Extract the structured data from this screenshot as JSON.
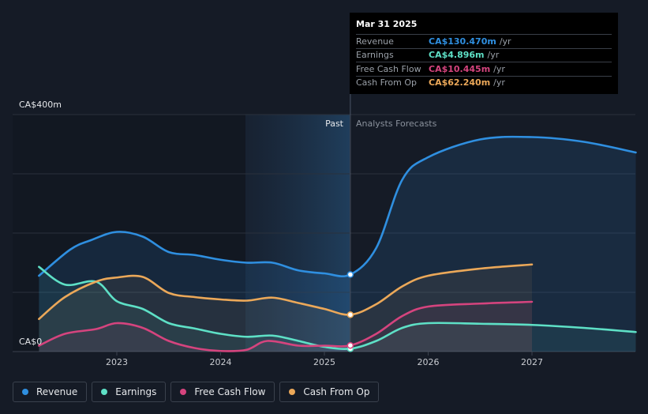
{
  "chart_data": {
    "type": "area",
    "y_unit": "CA$m",
    "ylim": [
      0,
      400
    ],
    "y_tick_labels": [
      "CA$400m",
      "CA$0"
    ],
    "x_tick_labels": [
      "2023",
      "2024",
      "2025",
      "2026",
      "2027"
    ],
    "past_label": "Past",
    "forecast_label": "Analysts Forecasts",
    "series": [
      {
        "name": "Revenue",
        "color": "#2f8fe0",
        "points": [
          [
            2022.25,
            128
          ],
          [
            2022.55,
            172
          ],
          [
            2022.75,
            188
          ],
          [
            2023.0,
            202
          ],
          [
            2023.25,
            194
          ],
          [
            2023.5,
            168
          ],
          [
            2023.75,
            163
          ],
          [
            2024.0,
            155
          ],
          [
            2024.25,
            150
          ],
          [
            2024.5,
            150
          ],
          [
            2024.75,
            137
          ],
          [
            2025.0,
            132
          ],
          [
            2025.25,
            130
          ],
          [
            2025.5,
            175
          ],
          [
            2025.75,
            290
          ],
          [
            2026.0,
            328
          ],
          [
            2026.5,
            358
          ],
          [
            2027.0,
            362
          ],
          [
            2027.5,
            354
          ],
          [
            2028.0,
            336
          ]
        ]
      },
      {
        "name": "Earnings",
        "color": "#5ee0c6",
        "points": [
          [
            2022.25,
            143
          ],
          [
            2022.5,
            113
          ],
          [
            2022.8,
            118
          ],
          [
            2023.0,
            85
          ],
          [
            2023.25,
            72
          ],
          [
            2023.5,
            48
          ],
          [
            2023.75,
            39
          ],
          [
            2024.0,
            30
          ],
          [
            2024.25,
            25
          ],
          [
            2024.5,
            27
          ],
          [
            2024.75,
            18
          ],
          [
            2025.0,
            8
          ],
          [
            2025.25,
            4.9
          ],
          [
            2025.5,
            18
          ],
          [
            2025.75,
            40
          ],
          [
            2026.0,
            48
          ],
          [
            2026.5,
            47
          ],
          [
            2027.0,
            45
          ],
          [
            2027.5,
            40
          ],
          [
            2028.0,
            33
          ]
        ]
      },
      {
        "name": "Free Cash Flow",
        "color": "#d5447e",
        "points": [
          [
            2022.25,
            10
          ],
          [
            2022.5,
            30
          ],
          [
            2022.8,
            38
          ],
          [
            2023.0,
            48
          ],
          [
            2023.25,
            40
          ],
          [
            2023.5,
            18
          ],
          [
            2023.75,
            6
          ],
          [
            2024.0,
            1
          ],
          [
            2024.25,
            3
          ],
          [
            2024.45,
            18
          ],
          [
            2024.75,
            10
          ],
          [
            2025.0,
            10
          ],
          [
            2025.25,
            10.4
          ],
          [
            2025.5,
            30
          ],
          [
            2025.75,
            60
          ],
          [
            2026.0,
            76
          ],
          [
            2026.5,
            81
          ],
          [
            2027.0,
            84
          ]
        ]
      },
      {
        "name": "Cash From Op",
        "color": "#eba859",
        "points": [
          [
            2022.25,
            55
          ],
          [
            2022.5,
            92
          ],
          [
            2022.8,
            118
          ],
          [
            2023.0,
            125
          ],
          [
            2023.25,
            126
          ],
          [
            2023.5,
            99
          ],
          [
            2023.75,
            92
          ],
          [
            2024.0,
            88
          ],
          [
            2024.25,
            86
          ],
          [
            2024.5,
            91
          ],
          [
            2024.75,
            82
          ],
          [
            2025.0,
            72
          ],
          [
            2025.25,
            62.2
          ],
          [
            2025.5,
            80
          ],
          [
            2025.75,
            110
          ],
          [
            2026.0,
            128
          ],
          [
            2026.5,
            140
          ],
          [
            2027.0,
            147
          ]
        ]
      }
    ]
  },
  "tooltip": {
    "date": "Mar 31 2025",
    "rows": [
      {
        "label": "Revenue",
        "value": "CA$130.470m",
        "unit": "/yr",
        "color": "#2f8fe0"
      },
      {
        "label": "Earnings",
        "value": "CA$4.896m",
        "unit": "/yr",
        "color": "#5ee0c6"
      },
      {
        "label": "Free Cash Flow",
        "value": "CA$10.445m",
        "unit": "/yr",
        "color": "#d5447e"
      },
      {
        "label": "Cash From Op",
        "value": "CA$62.240m",
        "unit": "/yr",
        "color": "#eba859"
      }
    ]
  },
  "legend": [
    {
      "label": "Revenue",
      "color": "#2f8fe0"
    },
    {
      "label": "Earnings",
      "color": "#5ee0c6"
    },
    {
      "label": "Free Cash Flow",
      "color": "#d5447e"
    },
    {
      "label": "Cash From Op",
      "color": "#eba859"
    }
  ]
}
